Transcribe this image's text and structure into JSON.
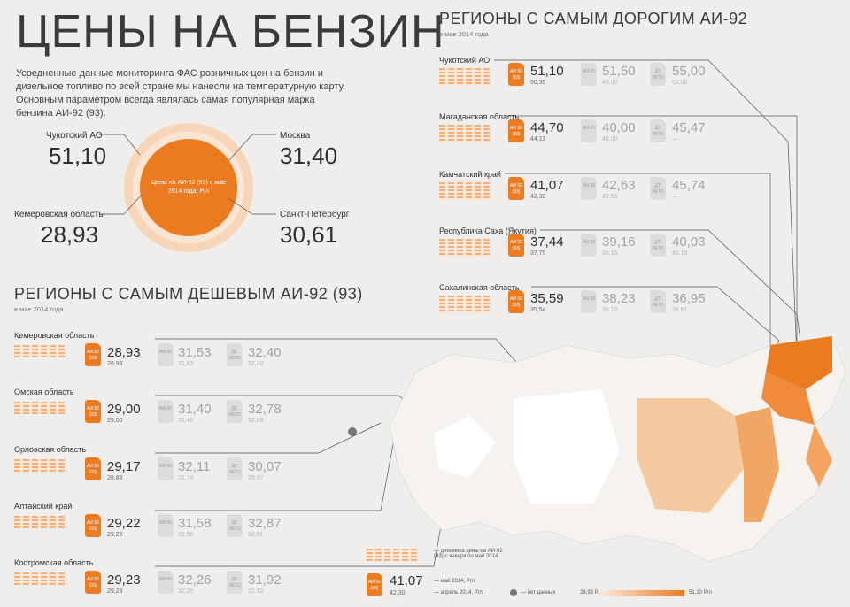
{
  "title": "ЦЕНЫ НА БЕНЗИН",
  "intro": "Усредненные данные мониторинга ФАС розничных цен на бензин и дизельное топливо по всей стране мы нанесли на температурную карту. Основным параметром всегда являлась самая популярная марка бензина АИ-92 (93).",
  "circle": {
    "center_text": "Цены на АИ-92 (93) в мае 2014 года, Р/л",
    "items": [
      {
        "label": "Чукотский АО",
        "value": "51,10"
      },
      {
        "label": "Москва",
        "value": "31,40"
      },
      {
        "label": "Кемеровская область",
        "value": "28,93"
      },
      {
        "label": "Санкт-Петербург",
        "value": "30,61"
      }
    ]
  },
  "expensive": {
    "title": "РЕГИОНЫ С САМЫМ ДОРОГИМ АИ-92",
    "subtitle": "в мае 2014 года",
    "regions": [
      {
        "name": "Чукотский АО",
        "ai92": "51,10",
        "ai92_prev": "50,35",
        "ai95": "51,50",
        "ai95_prev": "49,00",
        "dt": "55,00",
        "dt_prev": "52,00"
      },
      {
        "name": "Магаданская область",
        "ai92": "44,70",
        "ai92_prev": "44,11",
        "ai95": "40,00",
        "ai95_prev": "40,00",
        "dt": "45,47",
        "dt_prev": "—"
      },
      {
        "name": "Камчатский край",
        "ai92": "41,07",
        "ai92_prev": "42,30",
        "ai95": "42,63",
        "ai95_prev": "42,50",
        "dt": "45,74",
        "dt_prev": "—"
      },
      {
        "name": "Республика Саха (Якутия)",
        "ai92": "37,44",
        "ai92_prev": "37,75",
        "ai95": "39,16",
        "ai95_prev": "39,16",
        "dt": "40,03",
        "dt_prev": "40,19"
      },
      {
        "name": "Сахалинская область",
        "ai92": "35,59",
        "ai92_prev": "35,54",
        "ai95": "38,23",
        "ai95_prev": "38,12",
        "dt": "36,95",
        "dt_prev": "36,61"
      }
    ]
  },
  "cheap": {
    "title": "РЕГИОНЫ С САМЫМ ДЕШЕВЫМ АИ-92 (93)",
    "subtitle": "в мае 2014 года",
    "regions": [
      {
        "name": "Кемеровская область",
        "ai92": "28,93",
        "ai92_prev": "28,93",
        "ai95": "31,53",
        "ai95_prev": "31,62",
        "dt": "32,40",
        "dt_prev": "32,40"
      },
      {
        "name": "Омская область",
        "ai92": "29,00",
        "ai92_prev": "29,00",
        "ai95": "31,40",
        "ai95_prev": "31,40",
        "dt": "32,78",
        "dt_prev": "32,88"
      },
      {
        "name": "Орловская область",
        "ai92": "29,17",
        "ai92_prev": "28,83",
        "ai95": "32,11",
        "ai95_prev": "31,74",
        "dt": "30,07",
        "dt_prev": "29,97"
      },
      {
        "name": "Алтайский край",
        "ai92": "29,22",
        "ai92_prev": "29,22",
        "ai95": "31,58",
        "ai95_prev": "31,58",
        "dt": "32,87",
        "dt_prev": "32,91"
      },
      {
        "name": "Костромская область",
        "ai92": "29,23",
        "ai92_prev": "29,23",
        "ai95": "32,26",
        "ai95_prev": "32,26",
        "dt": "31,92",
        "dt_prev": "31,92"
      }
    ]
  },
  "cans": {
    "ai92": "АИ 92 (93)",
    "ai95": "АИ 95",
    "dt": "ДТ ЛЕТО"
  },
  "legend": {
    "dynamics": "— динамика цены на АИ-92 (93) с января по май 2014",
    "example_value": "41,07",
    "example_prev": "42,30",
    "may": "— май 2014, Р/л",
    "april": "— апрель 2014, Р/л",
    "no_data": "— нет данных",
    "scale_min": "28,93 Р/л",
    "scale_max": "51,10 Р/л"
  },
  "colors": {
    "accent": "#ea7b20",
    "light": "#fbe3cf",
    "gray": "#dcdcdc"
  }
}
